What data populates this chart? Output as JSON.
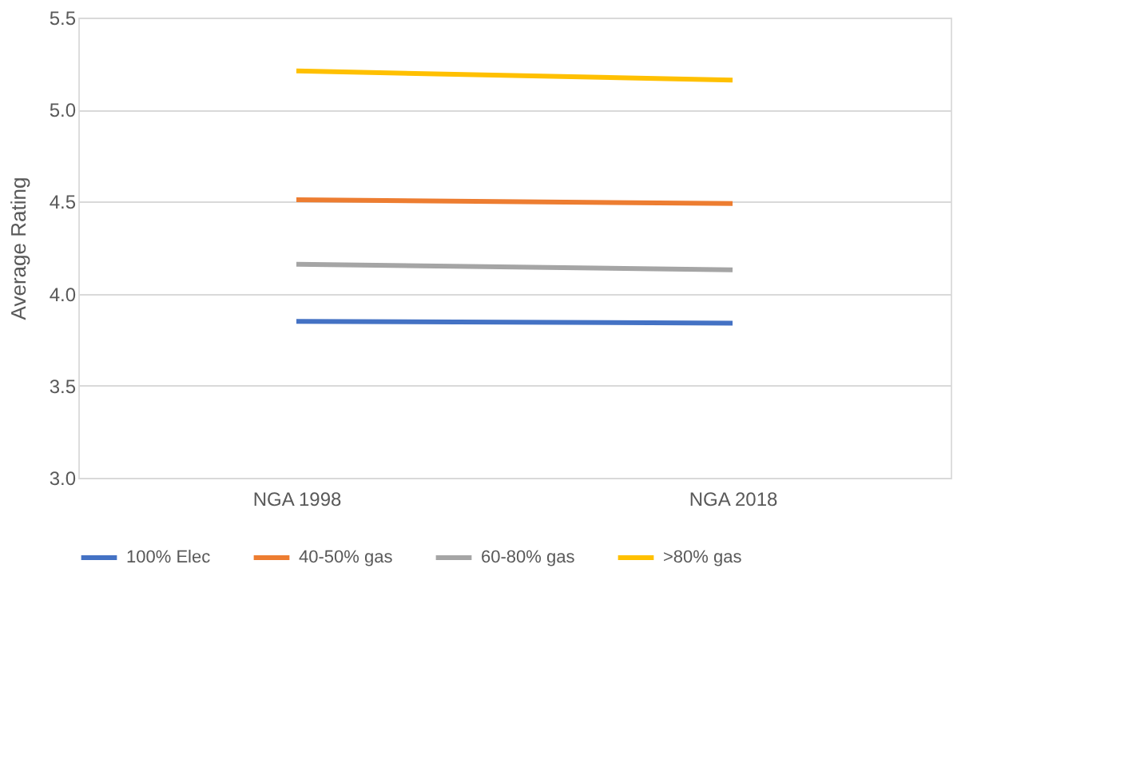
{
  "chart_data": {
    "type": "line",
    "ylabel": "Average Rating",
    "categories": [
      "NGA 1998",
      "NGA 2018"
    ],
    "series": [
      {
        "name": "100% Elec",
        "color": "#4472c4",
        "values": [
          3.85,
          3.84
        ]
      },
      {
        "name": "40-50% gas",
        "color": "#ed7d31",
        "values": [
          4.51,
          4.49
        ]
      },
      {
        "name": "60-80% gas",
        "color": "#a5a5a5",
        "values": [
          4.16,
          4.13
        ]
      },
      {
        "name": ">80% gas",
        "color": "#ffc000",
        "values": [
          5.21,
          5.16
        ]
      }
    ],
    "ylim": [
      3.0,
      5.5
    ],
    "yticks": [
      {
        "value": 3,
        "label": "3.0"
      },
      {
        "value": 3.5,
        "label": "3.5"
      },
      {
        "value": 4,
        "label": "4.0"
      },
      {
        "value": 4.5,
        "label": "4.5"
      },
      {
        "value": 5,
        "label": "5.0"
      },
      {
        "value": 5.5,
        "label": "5.5"
      }
    ],
    "grid": "y",
    "legend": "bottom",
    "marker": "none",
    "line_style": "solid"
  }
}
